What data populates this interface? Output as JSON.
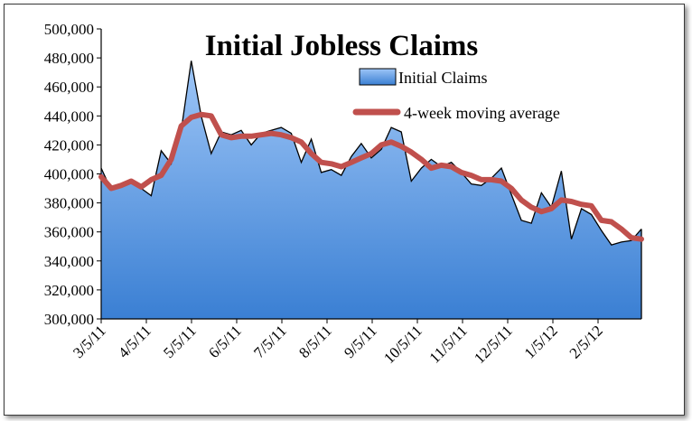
{
  "chart_data": {
    "type": "area",
    "title": "Initial Jobless Claims",
    "xlabel": "",
    "ylabel": "",
    "ylim": [
      300000,
      500000
    ],
    "y_ticks": [
      "300,000",
      "320,000",
      "340,000",
      "360,000",
      "380,000",
      "400,000",
      "420,000",
      "440,000",
      "460,000",
      "480,000",
      "500,000"
    ],
    "x_tick_labels": [
      "3/5/11",
      "4/5/11",
      "5/5/11",
      "6/5/11",
      "7/5/11",
      "8/5/11",
      "9/5/11",
      "10/5/11",
      "11/5/11",
      "12/5/11",
      "1/5/12",
      "2/5/12"
    ],
    "legend": {
      "placement": "top-right",
      "entries": [
        "Initial Claims",
        "4-week moving average"
      ]
    },
    "colors": {
      "area_top": "#9ec6f7",
      "area_bottom": "#3a7fd3",
      "area_edge": "#000000",
      "moving_average": "#c0504d"
    },
    "grid": false,
    "series": [
      {
        "name": "Initial Claims",
        "values": [
          404000,
          389000,
          392000,
          395000,
          390000,
          385000,
          416000,
          407000,
          430000,
          478000,
          440000,
          414000,
          429000,
          427000,
          430000,
          420000,
          428000,
          430000,
          432000,
          428000,
          408000,
          424000,
          401000,
          403000,
          399000,
          412000,
          421000,
          411000,
          417000,
          432000,
          429000,
          395000,
          404000,
          410000,
          405000,
          408000,
          401000,
          393000,
          392000,
          397000,
          404000,
          386000,
          368000,
          366000,
          387000,
          377000,
          402000,
          355000,
          376000,
          372000,
          361000,
          351000,
          353000,
          354000,
          362000
        ]
      },
      {
        "name": "4-week moving average",
        "values": [
          398000,
          390000,
          392000,
          395000,
          391000,
          396000,
          399000,
          410000,
          433000,
          439000,
          441000,
          440000,
          427000,
          425000,
          426000,
          426000,
          427000,
          428000,
          427000,
          425000,
          422000,
          414000,
          408000,
          407000,
          405000,
          408000,
          411000,
          414000,
          420000,
          422000,
          419000,
          415000,
          410000,
          404000,
          406000,
          405000,
          401000,
          399000,
          396000,
          396000,
          395000,
          390000,
          382000,
          377000,
          374000,
          376000,
          382000,
          381000,
          379000,
          378000,
          368000,
          367000,
          362000,
          356000,
          355000
        ]
      }
    ]
  }
}
